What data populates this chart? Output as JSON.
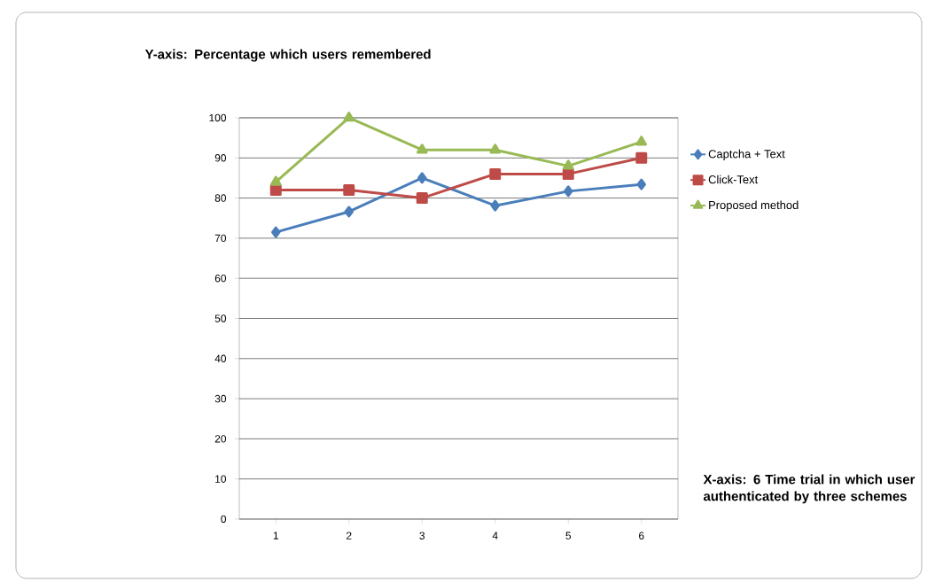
{
  "chart_data": {
    "type": "line",
    "ylabel": "Y-axis: Percentage which users remembered",
    "xlabel": "X-axis: 6 Time trial in which user authenticated by three schemes",
    "categories": [
      "1",
      "2",
      "3",
      "4",
      "5",
      "6"
    ],
    "series": [
      {
        "name": "Captcha + Text",
        "color": "#4a7ebb",
        "marker": "diamond",
        "values": [
          71.5,
          76.6,
          85,
          78.1,
          81.7,
          83.4
        ]
      },
      {
        "name": "Click-Text",
        "color": "#be4b48",
        "marker": "square",
        "values": [
          82,
          82,
          80,
          86,
          86,
          90
        ]
      },
      {
        "name": "Proposed method",
        "color": "#98b954",
        "marker": "triangle",
        "values": [
          84,
          100,
          92,
          92,
          88,
          94
        ]
      }
    ],
    "ylim": [
      0,
      100
    ],
    "yticks": [
      0,
      10,
      20,
      30,
      40,
      50,
      60,
      70,
      80,
      90,
      100
    ],
    "grid": "y",
    "legend": "right",
    "line_style": "solid"
  }
}
